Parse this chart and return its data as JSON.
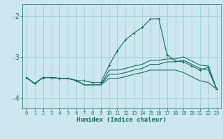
{
  "xlabel": "Humidex (Indice chaleur)",
  "x": [
    0,
    1,
    2,
    3,
    4,
    5,
    6,
    7,
    8,
    9,
    10,
    11,
    12,
    13,
    14,
    15,
    16,
    17,
    18,
    19,
    20,
    21,
    22,
    23
  ],
  "line1": [
    -3.5,
    -3.65,
    -3.5,
    -3.5,
    -3.52,
    -3.52,
    -3.57,
    -3.58,
    -3.62,
    -3.62,
    -3.2,
    -2.85,
    -2.58,
    -2.42,
    -2.28,
    -2.08,
    -2.07,
    -2.95,
    -3.1,
    -3.12,
    -3.22,
    -3.32,
    -3.25,
    -3.78
  ],
  "line2": [
    -3.5,
    -3.65,
    -3.5,
    -3.5,
    -3.52,
    -3.52,
    -3.57,
    -3.68,
    -3.68,
    -3.68,
    -3.32,
    -3.32,
    -3.28,
    -3.22,
    -3.18,
    -3.08,
    -3.08,
    -3.05,
    -3.05,
    -3.0,
    -3.1,
    -3.2,
    -3.22,
    -3.78
  ],
  "line3": [
    -3.5,
    -3.65,
    -3.5,
    -3.5,
    -3.52,
    -3.52,
    -3.57,
    -3.68,
    -3.68,
    -3.68,
    -3.42,
    -3.42,
    -3.38,
    -3.32,
    -3.28,
    -3.18,
    -3.18,
    -3.12,
    -3.12,
    -3.08,
    -3.18,
    -3.28,
    -3.32,
    -3.78
  ],
  "line4": [
    -3.5,
    -3.65,
    -3.5,
    -3.5,
    -3.52,
    -3.52,
    -3.57,
    -3.68,
    -3.68,
    -3.68,
    -3.52,
    -3.52,
    -3.48,
    -3.42,
    -3.38,
    -3.32,
    -3.32,
    -3.32,
    -3.32,
    -3.38,
    -3.48,
    -3.58,
    -3.62,
    -3.78
  ],
  "bg_color": "#cce8ee",
  "grid_color": "#9dc8cc",
  "line_color": "#1a6b6b",
  "ylim": [
    -4.25,
    -1.72
  ],
  "yticks": [
    -4,
    -3,
    -2
  ],
  "xlim": [
    -0.5,
    23.5
  ]
}
